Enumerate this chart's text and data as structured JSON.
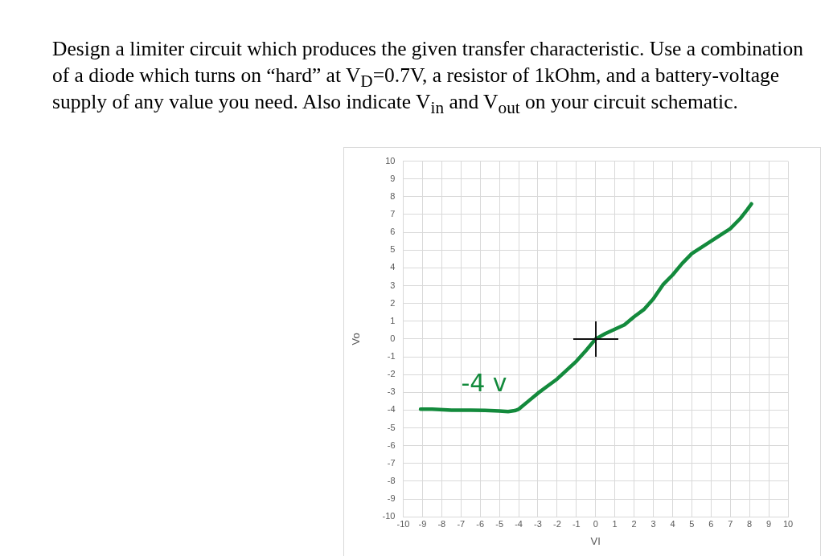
{
  "chart_data": {
    "type": "line",
    "title": "Design a limiter circuit which produces the given transfer characteristic.  Use a combination of a diode which turns on “hard” at V$_{D}$=0.7V, a resistor of 1kOhm, and a battery-voltage supply of any value you need.  Also indicate V$_{in}$ and V$_{out}$ on your circuit schematic.",
    "xlabel": "VI",
    "ylabel": "Vo",
    "x": [
      -9.1,
      -8.5,
      -7.5,
      -6.5,
      -5.75,
      -5,
      -4.55,
      -4.2,
      -4.0,
      -3.5,
      -3.0,
      -2.5,
      -2.0,
      -1.5,
      -1.0,
      -0.5,
      0,
      0.5,
      1.0,
      1.5,
      2.0,
      2.5,
      3.0,
      3.5,
      4.0,
      4.5,
      5.0,
      5.5,
      6.0,
      6.5,
      7.0,
      7.5,
      7.9,
      8.1
    ],
    "series": [
      {
        "color": "#138a3c",
        "values": [
          -3.95,
          -3.95,
          -4.0,
          -4.0,
          -4.02,
          -4.05,
          -4.08,
          -4.03,
          -3.95,
          -3.5,
          -3.05,
          -2.65,
          -2.25,
          -1.75,
          -1.25,
          -0.65,
          0,
          0.3,
          0.55,
          0.8,
          1.25,
          1.65,
          2.25,
          3.05,
          3.6,
          4.25,
          4.8,
          5.15,
          5.5,
          5.85,
          6.2,
          6.75,
          7.3,
          7.6
        ]
      }
    ],
    "xlim": [
      -10,
      10
    ],
    "xticks": [
      -10,
      -9,
      -8,
      -7,
      -6,
      -5,
      -4,
      -3,
      -2,
      -1,
      0,
      1,
      2,
      3,
      4,
      5,
      6,
      7,
      8,
      9,
      10
    ],
    "ylim": [
      -10,
      10
    ],
    "yticks": [
      -10,
      -9,
      -8,
      -7,
      -6,
      -5,
      -4,
      -3,
      -2,
      -1,
      0,
      1,
      2,
      3,
      4,
      5,
      6,
      7,
      8,
      9,
      10
    ],
    "grid": true,
    "legend": false,
    "marker": "none",
    "line_style": "solid",
    "annotations": [
      {
        "text": "-4 v",
        "x": -5.8,
        "y": -4
      }
    ]
  }
}
